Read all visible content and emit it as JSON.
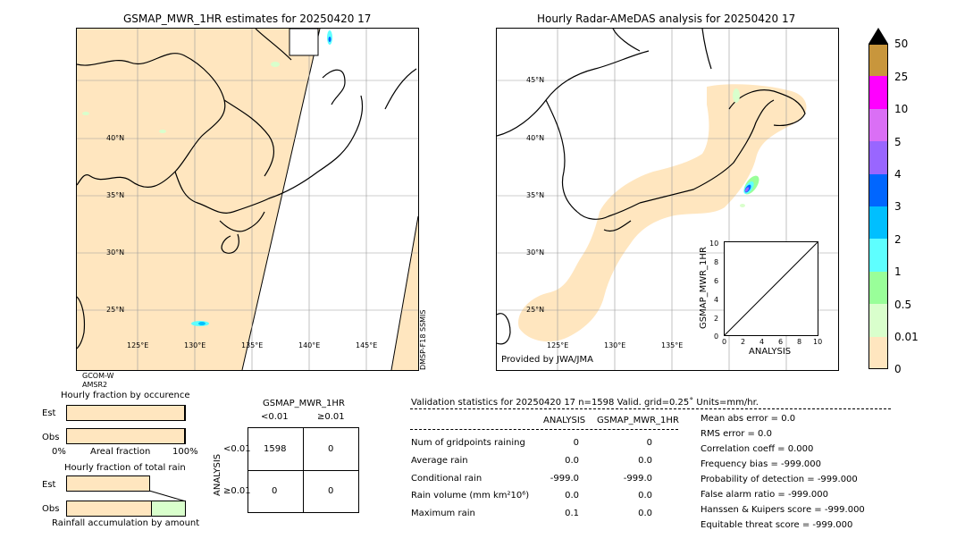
{
  "left_map": {
    "title": "GSMAP_MWR_1HR estimates for 20250420 17",
    "lat_labels": [
      "40°N",
      "35°N",
      "30°N",
      "25°N"
    ],
    "lon_labels": [
      "125°E",
      "130°E",
      "135°E",
      "140°E",
      "145°E"
    ],
    "sat_left_1": "GCOM-W",
    "sat_left_2": "AMSR2",
    "sat_right": "DMSP-F18 SSMIS"
  },
  "right_map": {
    "title": "Hourly Radar-AMeDAS analysis for 20250420 17",
    "lat_labels": [
      "45°N",
      "40°N",
      "35°N",
      "30°N",
      "25°N"
    ],
    "lon_labels": [
      "125°E",
      "130°E",
      "135°E"
    ],
    "credit": "Provided by JWA/JMA"
  },
  "colorbar": {
    "labels": [
      "50",
      "25",
      "10",
      "5",
      "4",
      "3",
      "2",
      "1",
      "0.5",
      "0.01",
      "0"
    ],
    "colors": [
      "#c8963c",
      "#ff00ff",
      "#da6ff5",
      "#9966ff",
      "#0066ff",
      "#00bfff",
      "#5effff",
      "#99ff99",
      "#d9ffcc",
      "#ffe6bf"
    ],
    "extend_color": "#000000"
  },
  "chart_data": [
    {
      "type": "scatter",
      "title": "",
      "xlabel": "ANALYSIS",
      "ylabel": "GSMAP_MWR_1HR",
      "xlim": [
        0,
        10
      ],
      "ylim": [
        0,
        10
      ],
      "xticks": [
        "0",
        "2",
        "4",
        "6",
        "8",
        "10"
      ],
      "yticks": [
        "0",
        "2",
        "4",
        "6",
        "8",
        "10"
      ],
      "points": [],
      "reference_line": [
        [
          0,
          0
        ],
        [
          10,
          10
        ]
      ]
    },
    {
      "type": "bar",
      "title": "Hourly fraction by occurence",
      "categories": [
        "Est",
        "Obs"
      ],
      "values": [
        0.99,
        0.99
      ],
      "xlabel": "Areal fraction",
      "xtick_left": "0%",
      "xtick_right": "100%"
    },
    {
      "type": "bar",
      "title": "Hourly fraction of total rain",
      "categories": [
        "Est",
        "Obs"
      ],
      "values": [
        0.0,
        0.0
      ],
      "xlabel": "Rainfall accumulation by amount"
    }
  ],
  "contingency": {
    "title": "GSMAP_MWR_1HR",
    "col_lt": "<0.01",
    "col_ge": "≥0.01",
    "row_axis": "ANALYSIS",
    "row_lt": "<0.01",
    "row_ge": "≥0.01",
    "cells": [
      "1598",
      "0",
      "0",
      "0"
    ]
  },
  "validation": {
    "header": "Validation statistics for 20250420 17  n=1598 Valid. grid=0.25˚ Units=mm/hr.",
    "col_analysis": "ANALYSIS",
    "col_gsmap": "GSMAP_MWR_1HR",
    "rows": [
      {
        "label": "Num of gridpoints raining",
        "analysis": "0",
        "gsmap": "0"
      },
      {
        "label": "Average rain",
        "analysis": "0.0",
        "gsmap": "0.0"
      },
      {
        "label": "Conditional rain",
        "analysis": "-999.0",
        "gsmap": "-999.0"
      },
      {
        "label": "Rain volume (mm km²10⁶)",
        "analysis": "0.0",
        "gsmap": "0.0"
      },
      {
        "label": "Maximum rain",
        "analysis": "0.1",
        "gsmap": "0.0"
      }
    ],
    "scores": [
      "Mean abs error =    0.0",
      "RMS error =    0.0",
      "Correlation coeff =  0.000",
      "Frequency bias = -999.000",
      "Probability of detection = -999.000",
      "False alarm ratio = -999.000",
      "Hanssen & Kuipers score = -999.000",
      "Equitable threat score = -999.000"
    ]
  }
}
